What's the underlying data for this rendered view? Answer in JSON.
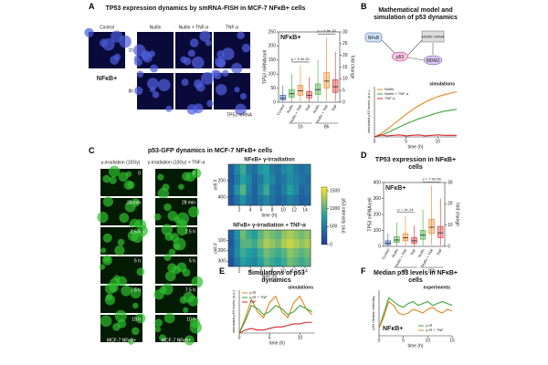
{
  "panels": {
    "A": {
      "letter": "A",
      "title": "TP53 expression dynamics by smRNA-FISH in MCF-7 NFκB+ cells",
      "conditions": [
        "Control",
        "Nutlin",
        "Nutlin + TNF-α",
        "TNF-α"
      ],
      "times": [
        "1h",
        "8h"
      ],
      "cell_label": "NFκB+",
      "stain_label": "TP53 mRNA"
    },
    "B": {
      "letter": "B",
      "title": "Mathematical model and simulation of p53 dynamics",
      "nodes": [
        "NFκB",
        "p53",
        "MDM2 mRNA",
        "MDM2"
      ]
    },
    "C": {
      "letter": "C",
      "title": "p53-GFP dynamics in MCF-7 NFκB+ cells",
      "columns": [
        "γ-irradiation (10Gy)",
        "γ-irradiation (10Gy) + TNF-α"
      ],
      "frame_times": [
        "0",
        "28 min",
        "2.5 h",
        "5 h",
        "7.5 h",
        "10 h"
      ],
      "cell_label": "MCF-7 NFκB+"
    },
    "D": {
      "letter": "D",
      "title": "TP53 expression in NFκB+ cells"
    },
    "E": {
      "letter": "E",
      "title": "Simulations of p53 dynamics"
    },
    "F": {
      "letter": "F",
      "title": "Median p53 levels in NFκB+ cells"
    }
  },
  "chart_data": [
    {
      "type": "box",
      "title": "NFκB+",
      "ylabel": "TP53 mRNA/cell",
      "y2label": "fold change",
      "categories": [
        "Control",
        "Nutlin",
        "Nutlin + TNF",
        "TNF",
        "Nutlin",
        "Nutlin + TNF",
        "TNF"
      ],
      "groups": [
        "1h",
        "8h"
      ],
      "colors": [
        "#2a5caa",
        "#3aa53a",
        "#e8821e",
        "#d62728",
        "#3aa53a",
        "#e8821e",
        "#d62728"
      ],
      "low": [
        0,
        2,
        3,
        2,
        3,
        5,
        4
      ],
      "q1": [
        8,
        18,
        25,
        15,
        28,
        50,
        35
      ],
      "median": [
        15,
        30,
        40,
        25,
        45,
        75,
        55
      ],
      "q3": [
        25,
        45,
        60,
        38,
        65,
        105,
        80
      ],
      "high": [
        60,
        100,
        130,
        90,
        150,
        230,
        180
      ],
      "annotations": [
        "p = 5.4e-51",
        "p = 6.8e-30"
      ],
      "ylim": [
        0,
        250
      ],
      "yticks": [
        0,
        50,
        100,
        150,
        200,
        250
      ],
      "y2lim": [
        0,
        30
      ],
      "y2ticks": [
        0,
        5,
        10,
        15,
        20,
        25,
        30
      ]
    },
    {
      "type": "line",
      "annotations": [
        "simulations"
      ],
      "xlabel": "time (h)",
      "ylabel": "simulated p53 levels (a.u.)",
      "x": [
        0,
        1,
        2,
        3,
        4,
        5,
        6,
        7,
        8,
        9,
        10,
        11,
        12,
        13
      ],
      "series": [
        {
          "name": "Nutlin",
          "color": "#e8821e",
          "values": [
            0,
            0.6,
            1.5,
            2.5,
            3.5,
            4.5,
            5.4,
            6.2,
            6.9,
            7.5,
            8,
            8.4,
            8.7,
            9
          ]
        },
        {
          "name": "Nutlin + TNF-α",
          "color": "#3aa53a",
          "values": [
            0,
            0.3,
            0.8,
            1.4,
            2,
            2.6,
            3.1,
            3.6,
            4,
            4.4,
            4.8,
            5.1,
            5.3,
            5.5
          ]
        },
        {
          "name": "TNF-α",
          "color": "#d62728",
          "values": [
            0,
            0.4,
            0.2,
            0.3,
            0.4,
            0.2,
            0.3,
            0.4,
            0.2,
            0.3,
            0.4,
            0.3,
            0.3,
            0.3
          ]
        }
      ],
      "xlim": [
        0,
        13
      ],
      "xticks": [
        0,
        5,
        10
      ],
      "ylim": [
        0,
        10
      ]
    },
    {
      "type": "heatmap",
      "title": "NFκB+ γ-irradiation",
      "ylabel": "cell #",
      "xlabel": "time (h)",
      "values": [
        [
          300,
          600,
          900,
          500,
          400,
          700,
          800,
          500,
          400,
          600,
          700,
          500,
          400,
          500
        ],
        [
          250,
          500,
          800,
          600,
          350,
          500,
          750,
          600,
          400,
          500,
          650,
          550,
          450,
          400
        ],
        [
          300,
          700,
          1000,
          550,
          300,
          600,
          900,
          500,
          350,
          550,
          800,
          600,
          350,
          450
        ],
        [
          200,
          450,
          700,
          450,
          300,
          450,
          600,
          450,
          300,
          400,
          550,
          450,
          300,
          350
        ]
      ],
      "xlim": [
        0,
        15
      ],
      "xticks": [
        2,
        4,
        6,
        8,
        10,
        12,
        14
      ],
      "ylim": [
        0,
        500
      ],
      "yticks": [
        200,
        400
      ],
      "colorbar": {
        "label": "p53 intensity (au)",
        "lim": [
          0,
          1600
        ],
        "ticks": [
          0,
          500,
          1000,
          1500
        ]
      }
    },
    {
      "type": "heatmap",
      "title": "NFκB+ γ-irradiation + TNF-α",
      "ylabel": "cell #",
      "xlabel": "time (h)",
      "values": [
        [
          300,
          700,
          1100,
          900,
          800,
          1000,
          1200,
          1100,
          1000,
          1200,
          1300,
          1200,
          1100,
          1200
        ],
        [
          250,
          600,
          1000,
          1000,
          900,
          1100,
          1300,
          1200,
          1100,
          1300,
          1400,
          1300,
          1200,
          1300
        ],
        [
          300,
          650,
          900,
          800,
          700,
          900,
          1100,
          1000,
          900,
          1000,
          1200,
          1100,
          1000,
          1100
        ],
        [
          200,
          500,
          800,
          700,
          600,
          800,
          1000,
          900,
          800,
          900,
          1100,
          1000,
          900,
          1000
        ]
      ],
      "xlim": [
        0,
        15
      ],
      "xticks": [
        2,
        4,
        6,
        8,
        10,
        12,
        14
      ],
      "ylim": [
        0,
        350
      ],
      "yticks": [
        100,
        200,
        300
      ]
    },
    {
      "type": "box",
      "title": "NFκB+",
      "ylabel": "TP53 mRNA/cell",
      "y2label": "fold change",
      "categories": [
        "Control",
        "Nutlin",
        "Nutlin + TNF",
        "TNF",
        "Nutlin",
        "Nutlin + TNF",
        "TNF"
      ],
      "groups": [
        "4h",
        "15h"
      ],
      "colors": [
        "#2a5caa",
        "#3aa53a",
        "#e8821e",
        "#d62728",
        "#3aa53a",
        "#e8821e",
        "#d62728"
      ],
      "low": [
        0,
        3,
        4,
        3,
        5,
        8,
        6
      ],
      "q1": [
        10,
        25,
        35,
        20,
        45,
        80,
        55
      ],
      "median": [
        20,
        40,
        55,
        35,
        70,
        120,
        85
      ],
      "q3": [
        35,
        60,
        80,
        55,
        100,
        170,
        125
      ],
      "high": [
        80,
        150,
        190,
        130,
        230,
        380,
        300
      ],
      "annotations": [
        "p = 1e-14",
        "p = 7.5e-56"
      ],
      "ylim": [
        0,
        400
      ],
      "yticks": [
        0,
        100,
        200,
        300,
        400
      ],
      "y2lim": [
        0,
        30
      ],
      "y2ticks": [
        0,
        10,
        20,
        30
      ]
    },
    {
      "type": "line",
      "annotations": [
        "simulations"
      ],
      "xlabel": "time (h)",
      "ylabel": "simulated p53 levels (a.u.)",
      "x": [
        0,
        1,
        2,
        3,
        4,
        5,
        6,
        7,
        8,
        9,
        10,
        11,
        12
      ],
      "series": [
        {
          "name": "γ-IR",
          "color": "#e8821e",
          "values": [
            0,
            0.5,
            1.1,
            0.7,
            0.5,
            1.0,
            1.2,
            0.7,
            0.5,
            1.0,
            1.2,
            0.8,
            0.6
          ]
        },
        {
          "name": "γ-IR + TNF",
          "color": "#3aa53a",
          "values": [
            0,
            0.4,
            0.9,
            0.8,
            0.6,
            0.7,
            0.9,
            0.8,
            0.6,
            0.7,
            0.9,
            0.8,
            0.7
          ]
        },
        {
          "name": "TNF",
          "color": "#d62728",
          "values": [
            0,
            0.1,
            0.15,
            0.1,
            0.1,
            0.15,
            0.2,
            0.2,
            0.25,
            0.3,
            0.3,
            0.35,
            0.35
          ]
        }
      ],
      "xlim": [
        0,
        12.5
      ],
      "xticks": [
        0,
        5,
        10
      ],
      "ylim": [
        0,
        1.4
      ]
    },
    {
      "type": "line",
      "annotations": [
        "experiments",
        "NFκB+"
      ],
      "xlabel": "time (h)",
      "ylabel": "p53 Median Intensity",
      "x": [
        0,
        1,
        2,
        3,
        4,
        5,
        6,
        7,
        8,
        9,
        10,
        11,
        12,
        13,
        14,
        15
      ],
      "series": [
        {
          "name": "γ-IR",
          "color": "#3aa53a",
          "values": [
            0.2,
            0.6,
            1.0,
            0.9,
            0.8,
            0.75,
            0.85,
            0.9,
            0.8,
            0.85,
            0.9,
            0.8,
            0.85,
            0.9,
            0.85,
            0.8
          ]
        },
        {
          "name": "γ-IR + TNF",
          "color": "#e8821e",
          "values": [
            0.2,
            0.5,
            0.9,
            0.8,
            0.6,
            0.55,
            0.6,
            0.7,
            0.65,
            0.6,
            0.7,
            0.75,
            0.65,
            0.6,
            0.7,
            0.65
          ]
        }
      ],
      "xlim": [
        0,
        15
      ],
      "xticks": [
        0,
        5,
        10,
        15
      ],
      "ylim": [
        0,
        1.2
      ]
    }
  ]
}
